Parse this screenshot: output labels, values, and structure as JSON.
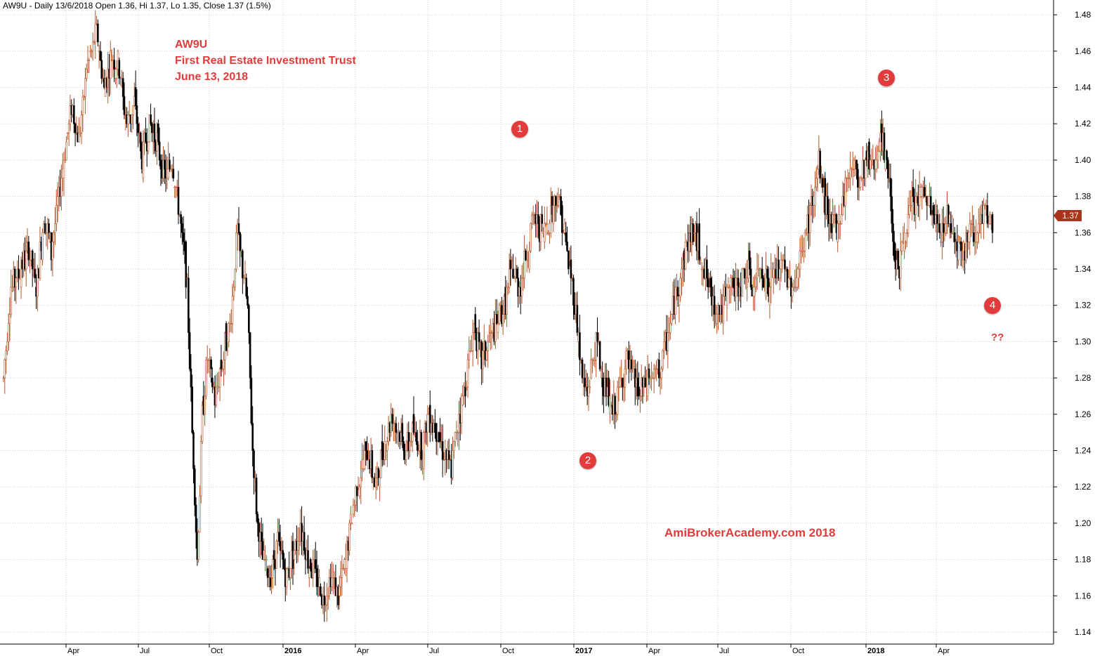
{
  "header": {
    "text": "AW9U - Daily 13/6/2018 Open 1.36, Hi 1.37, Lo 1.35, Close 1.37 (1.5%)"
  },
  "annotation_title": {
    "line1": "AW9U",
    "line2": "First Real Estate Investment Trust",
    "line3": "June 13, 2018"
  },
  "watermark": "AmiBrokerAcademy.com  2018",
  "question_marks": "??",
  "markers": [
    "1",
    "2",
    "3",
    "4"
  ],
  "last_price_label": "1.37",
  "colors": {
    "up_bar": "#b8572a",
    "down_bar": "#000000",
    "grid": "#cccccc",
    "annotation": "#e03c3c",
    "price_tag": "#a8341c"
  },
  "chart_data": {
    "type": "candlestick",
    "symbol": "AW9U",
    "interval": "Daily",
    "ylim": [
      1.13,
      1.49
    ],
    "y_ticks": [
      "1.14",
      "1.16",
      "1.18",
      "1.20",
      "1.22",
      "1.24",
      "1.26",
      "1.28",
      "1.30",
      "1.32",
      "1.34",
      "1.36",
      "1.38",
      "1.40",
      "1.42",
      "1.44",
      "1.46",
      "1.48"
    ],
    "x_ticks": [
      {
        "label": "Apr",
        "bold": false
      },
      {
        "label": "Jul",
        "bold": false
      },
      {
        "label": "Oct",
        "bold": false
      },
      {
        "label": "2016",
        "bold": true
      },
      {
        "label": "Apr",
        "bold": false
      },
      {
        "label": "Jul",
        "bold": false
      },
      {
        "label": "Oct",
        "bold": false
      },
      {
        "label": "2017",
        "bold": true
      },
      {
        "label": "Apr",
        "bold": false
      },
      {
        "label": "Jul",
        "bold": false
      },
      {
        "label": "Oct",
        "bold": false
      },
      {
        "label": "2018",
        "bold": true
      },
      {
        "label": "Apr",
        "bold": false
      }
    ],
    "price_path": [
      [
        0,
        1.28
      ],
      [
        6,
        1.33
      ],
      [
        14,
        1.34
      ],
      [
        20,
        1.35
      ],
      [
        26,
        1.33
      ],
      [
        32,
        1.37
      ],
      [
        38,
        1.35
      ],
      [
        46,
        1.39
      ],
      [
        54,
        1.43
      ],
      [
        60,
        1.41
      ],
      [
        66,
        1.45
      ],
      [
        74,
        1.47
      ],
      [
        80,
        1.44
      ],
      [
        86,
        1.46
      ],
      [
        92,
        1.45
      ],
      [
        98,
        1.42
      ],
      [
        104,
        1.43
      ],
      [
        110,
        1.4
      ],
      [
        116,
        1.42
      ],
      [
        122,
        1.41
      ],
      [
        128,
        1.39
      ],
      [
        134,
        1.4
      ],
      [
        140,
        1.37
      ],
      [
        146,
        1.33
      ],
      [
        150,
        1.25
      ],
      [
        154,
        1.18
      ],
      [
        158,
        1.26
      ],
      [
        162,
        1.29
      ],
      [
        168,
        1.27
      ],
      [
        174,
        1.29
      ],
      [
        180,
        1.31
      ],
      [
        186,
        1.36
      ],
      [
        190,
        1.34
      ],
      [
        194,
        1.32
      ],
      [
        198,
        1.24
      ],
      [
        202,
        1.2
      ],
      [
        206,
        1.18
      ],
      [
        212,
        1.17
      ],
      [
        218,
        1.19
      ],
      [
        224,
        1.17
      ],
      [
        230,
        1.18
      ],
      [
        236,
        1.2
      ],
      [
        242,
        1.18
      ],
      [
        248,
        1.17
      ],
      [
        254,
        1.16
      ],
      [
        260,
        1.17
      ],
      [
        266,
        1.16
      ],
      [
        272,
        1.18
      ],
      [
        278,
        1.21
      ],
      [
        284,
        1.23
      ],
      [
        290,
        1.24
      ],
      [
        296,
        1.22
      ],
      [
        302,
        1.24
      ],
      [
        308,
        1.26
      ],
      [
        314,
        1.25
      ],
      [
        320,
        1.24
      ],
      [
        326,
        1.25
      ],
      [
        332,
        1.24
      ],
      [
        338,
        1.26
      ],
      [
        344,
        1.25
      ],
      [
        350,
        1.24
      ],
      [
        356,
        1.23
      ],
      [
        362,
        1.26
      ],
      [
        368,
        1.28
      ],
      [
        374,
        1.31
      ],
      [
        380,
        1.29
      ],
      [
        386,
        1.3
      ],
      [
        392,
        1.31
      ],
      [
        398,
        1.32
      ],
      [
        404,
        1.34
      ],
      [
        410,
        1.33
      ],
      [
        416,
        1.35
      ],
      [
        422,
        1.37
      ],
      [
        428,
        1.36
      ],
      [
        434,
        1.37
      ],
      [
        440,
        1.38
      ],
      [
        446,
        1.36
      ],
      [
        452,
        1.33
      ],
      [
        456,
        1.31
      ],
      [
        460,
        1.28
      ],
      [
        464,
        1.27
      ],
      [
        468,
        1.29
      ],
      [
        472,
        1.3
      ],
      [
        476,
        1.28
      ],
      [
        480,
        1.27
      ],
      [
        484,
        1.26
      ],
      [
        488,
        1.27
      ],
      [
        492,
        1.28
      ],
      [
        496,
        1.29
      ],
      [
        500,
        1.28
      ],
      [
        506,
        1.27
      ],
      [
        512,
        1.28
      ],
      [
        518,
        1.28
      ],
      [
        524,
        1.29
      ],
      [
        530,
        1.31
      ],
      [
        536,
        1.33
      ],
      [
        542,
        1.35
      ],
      [
        548,
        1.36
      ],
      [
        554,
        1.35
      ],
      [
        560,
        1.33
      ],
      [
        566,
        1.32
      ],
      [
        572,
        1.32
      ],
      [
        578,
        1.33
      ],
      [
        584,
        1.33
      ],
      [
        590,
        1.34
      ],
      [
        596,
        1.33
      ],
      [
        602,
        1.34
      ],
      [
        608,
        1.33
      ],
      [
        614,
        1.34
      ],
      [
        620,
        1.34
      ],
      [
        626,
        1.33
      ],
      [
        632,
        1.34
      ],
      [
        638,
        1.36
      ],
      [
        644,
        1.38
      ],
      [
        648,
        1.4
      ],
      [
        652,
        1.38
      ],
      [
        656,
        1.37
      ],
      [
        662,
        1.36
      ],
      [
        668,
        1.38
      ],
      [
        674,
        1.4
      ],
      [
        680,
        1.39
      ],
      [
        686,
        1.4
      ],
      [
        692,
        1.4
      ],
      [
        698,
        1.41
      ],
      [
        704,
        1.39
      ],
      [
        708,
        1.35
      ],
      [
        712,
        1.34
      ],
      [
        716,
        1.36
      ],
      [
        720,
        1.37
      ],
      [
        726,
        1.38
      ],
      [
        732,
        1.38
      ],
      [
        738,
        1.37
      ],
      [
        744,
        1.36
      ],
      [
        750,
        1.37
      ],
      [
        756,
        1.36
      ],
      [
        762,
        1.35
      ],
      [
        768,
        1.36
      ],
      [
        774,
        1.36
      ],
      [
        780,
        1.37
      ],
      [
        786,
        1.36
      ]
    ]
  }
}
